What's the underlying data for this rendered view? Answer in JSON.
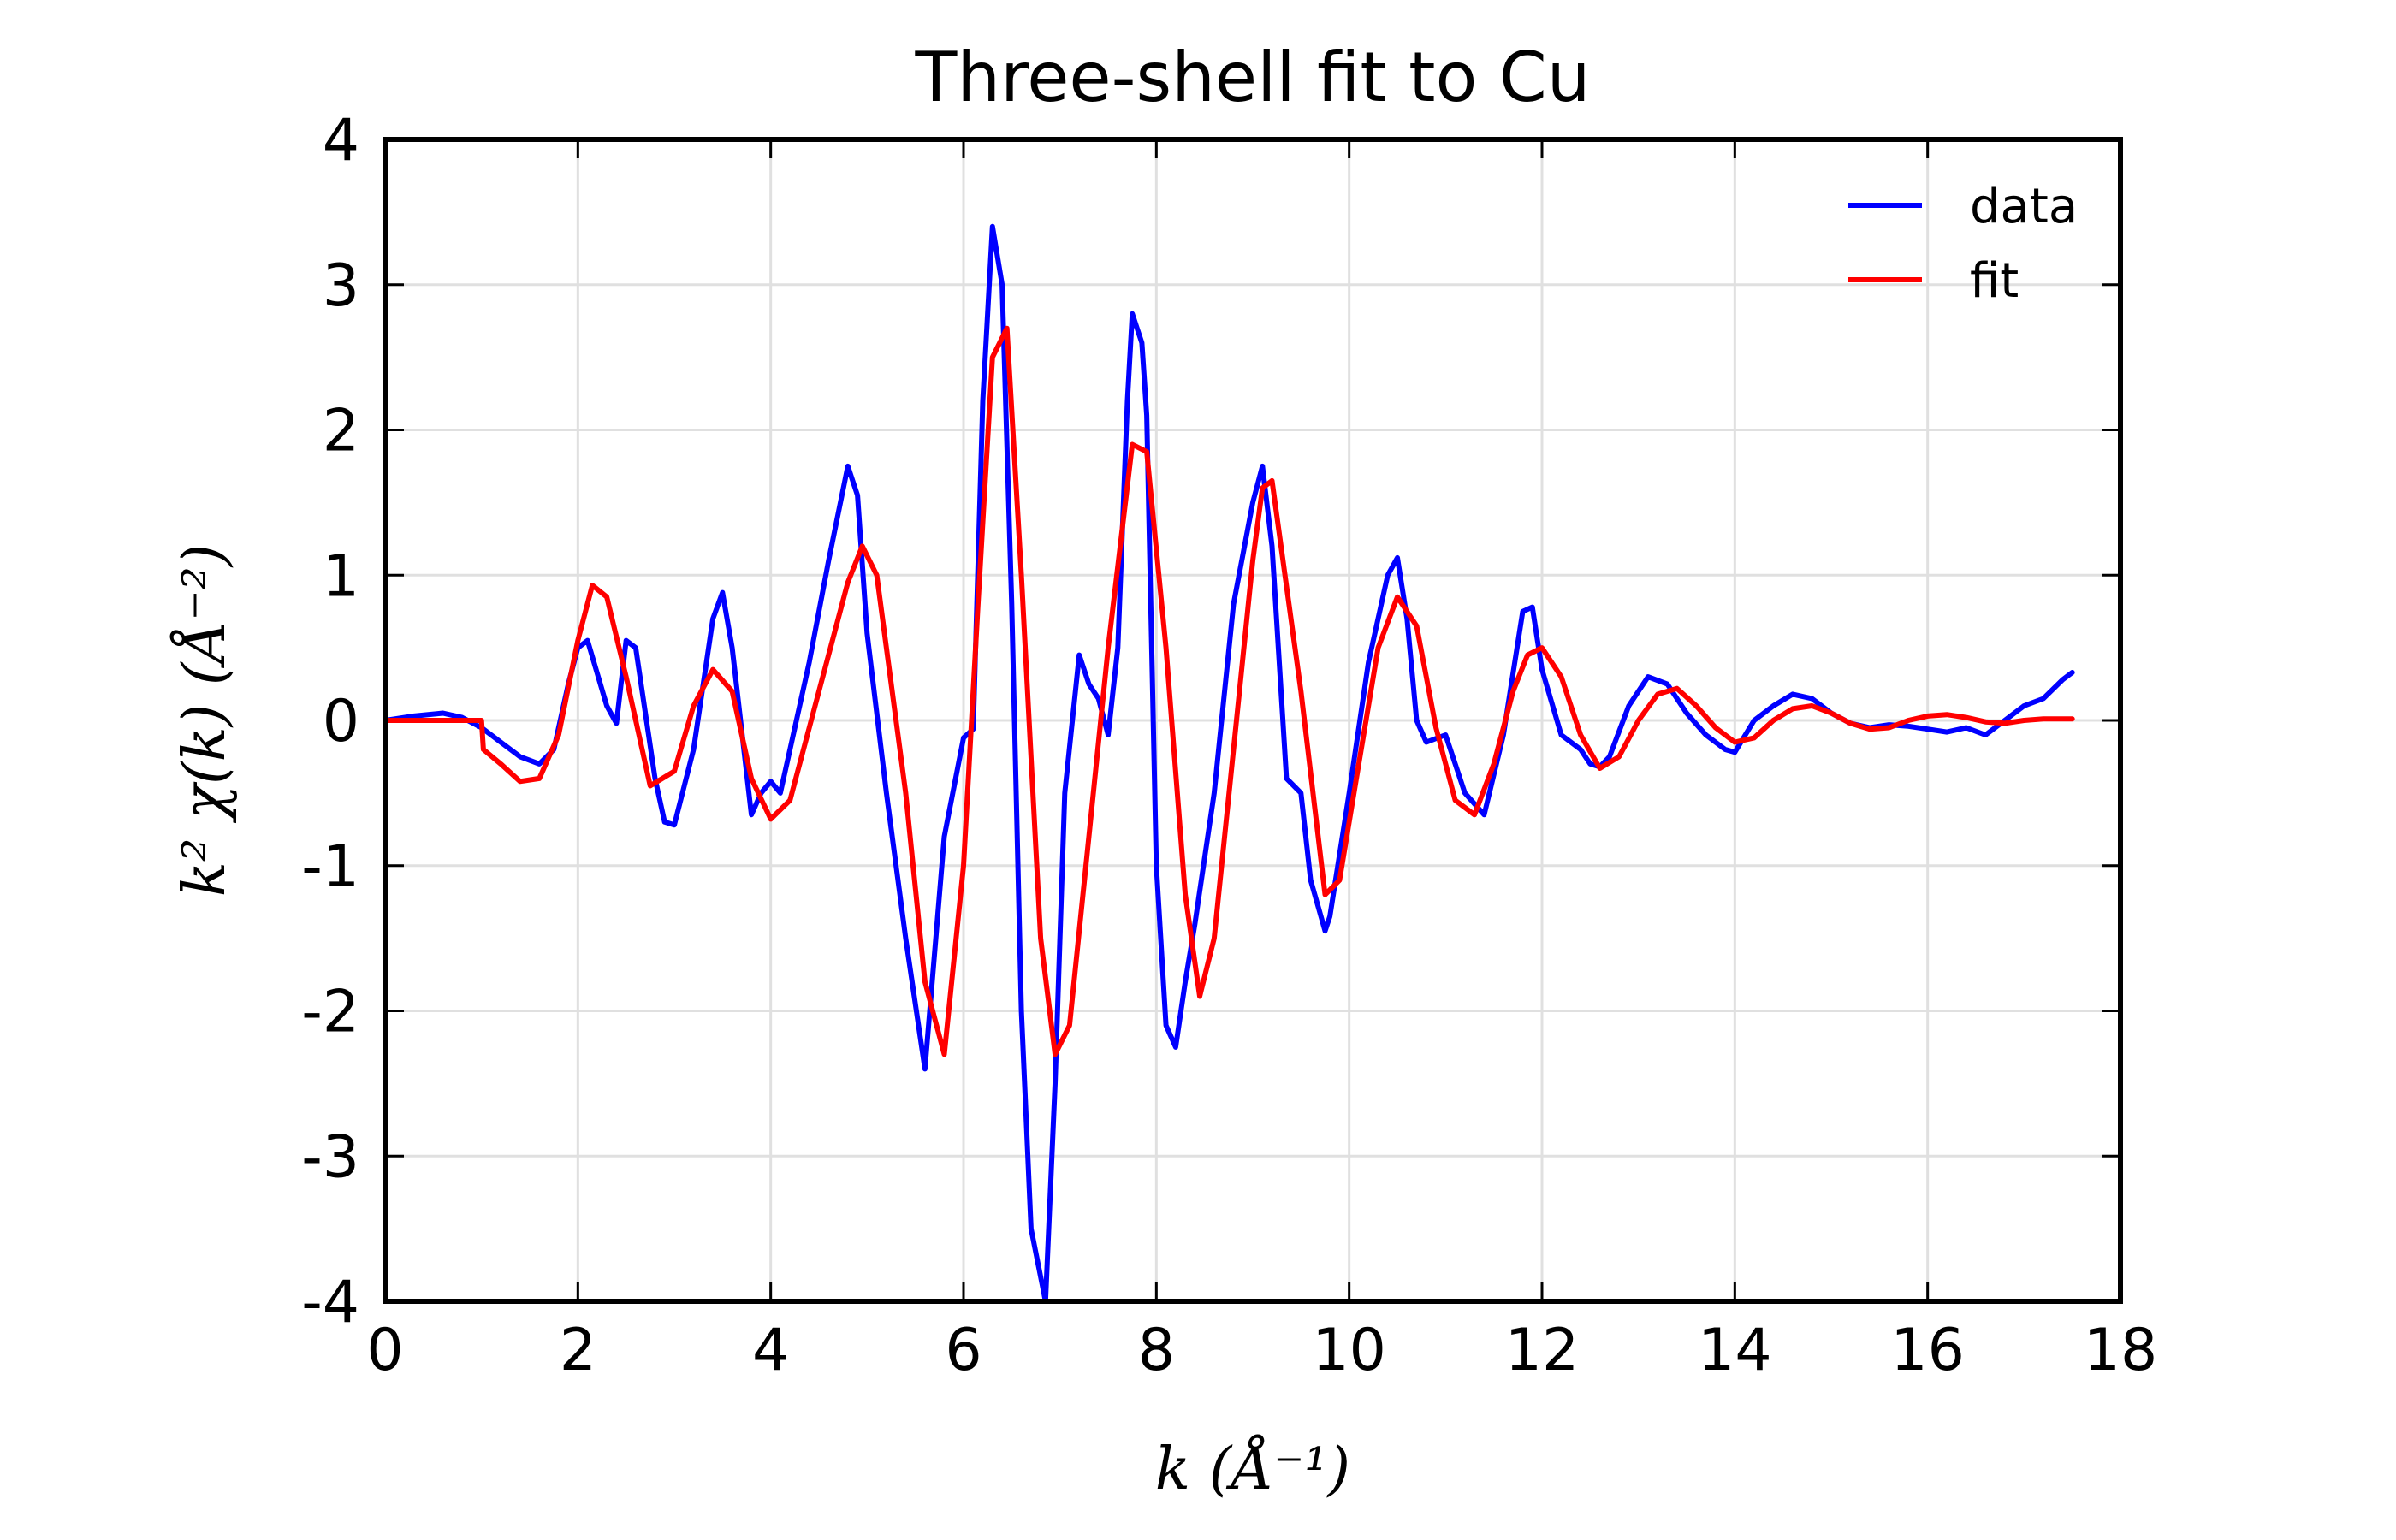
{
  "chart_data": {
    "type": "line",
    "title": "Three-shell fit to Cu",
    "xlabel": "k (Å⁻¹)",
    "ylabel": "k² χ(k) (Å⁻²)",
    "xlim": [
      0,
      18
    ],
    "ylim": [
      -4,
      4
    ],
    "x_ticks": [
      "0",
      "2",
      "4",
      "6",
      "8",
      "10",
      "12",
      "14",
      "16",
      "18"
    ],
    "y_ticks": [
      "4",
      "3",
      "2",
      "1",
      "0",
      "-1",
      "-2",
      "-3",
      "-4"
    ],
    "grid": true,
    "legend_position": "top-right",
    "series": [
      {
        "name": "data",
        "color": "#0000ff",
        "x": [
          0.0,
          0.3,
          0.6,
          0.8,
          1.0,
          1.2,
          1.4,
          1.6,
          1.75,
          1.9,
          2.0,
          2.1,
          2.3,
          2.4,
          2.5,
          2.6,
          2.8,
          2.9,
          3.0,
          3.2,
          3.4,
          3.5,
          3.6,
          3.8,
          3.9,
          4.0,
          4.1,
          4.2,
          4.4,
          4.6,
          4.8,
          4.9,
          5.0,
          5.2,
          5.4,
          5.6,
          5.8,
          6.0,
          6.1,
          6.2,
          6.3,
          6.4,
          6.5,
          6.6,
          6.7,
          6.85,
          6.95,
          7.05,
          7.2,
          7.3,
          7.4,
          7.5,
          7.6,
          7.7,
          7.75,
          7.85,
          7.9,
          8.0,
          8.1,
          8.2,
          8.3,
          8.4,
          8.6,
          8.8,
          9.0,
          9.1,
          9.2,
          9.35,
          9.5,
          9.6,
          9.75,
          9.8,
          10.0,
          10.2,
          10.4,
          10.5,
          10.6,
          10.7,
          10.8,
          11.0,
          11.1,
          11.2,
          11.4,
          11.6,
          11.8,
          11.9,
          12.0,
          12.2,
          12.4,
          12.5,
          12.6,
          12.7,
          12.9,
          13.1,
          13.3,
          13.5,
          13.7,
          13.9,
          14.0,
          14.2,
          14.4,
          14.6,
          14.8,
          15.0,
          15.2,
          15.4,
          15.6,
          15.8,
          16.0,
          16.2,
          16.4,
          16.6,
          16.8,
          17.0,
          17.2,
          17.4,
          17.5
        ],
        "y": [
          0.0,
          0.03,
          0.05,
          0.02,
          -0.05,
          -0.15,
          -0.25,
          -0.3,
          -0.2,
          0.25,
          0.5,
          0.55,
          0.1,
          -0.02,
          0.55,
          0.5,
          -0.4,
          -0.7,
          -0.72,
          -0.2,
          0.7,
          0.88,
          0.5,
          -0.65,
          -0.5,
          -0.42,
          -0.5,
          -0.2,
          0.4,
          1.1,
          1.75,
          1.55,
          0.6,
          -0.5,
          -1.5,
          -2.4,
          -0.8,
          -0.12,
          -0.06,
          2.2,
          3.4,
          3.0,
          0.8,
          -2.0,
          -3.5,
          -4.0,
          -2.5,
          -0.5,
          0.45,
          0.25,
          0.15,
          -0.1,
          0.5,
          2.2,
          2.8,
          2.6,
          2.1,
          -1.0,
          -2.1,
          -2.25,
          -1.8,
          -1.4,
          -0.5,
          0.8,
          1.5,
          1.75,
          1.2,
          -0.4,
          -0.5,
          -1.1,
          -1.45,
          -1.35,
          -0.5,
          0.4,
          1.0,
          1.12,
          0.7,
          0.0,
          -0.15,
          -0.1,
          -0.3,
          -0.5,
          -0.65,
          -0.1,
          0.75,
          0.78,
          0.35,
          -0.1,
          -0.2,
          -0.3,
          -0.32,
          -0.25,
          0.1,
          0.3,
          0.25,
          0.05,
          -0.1,
          -0.2,
          -0.22,
          0.0,
          0.1,
          0.18,
          0.15,
          0.05,
          -0.02,
          -0.05,
          -0.03,
          -0.04,
          -0.06,
          -0.08,
          -0.05,
          -0.1,
          0.0,
          0.1,
          0.15,
          0.28,
          0.33
        ]
      },
      {
        "name": "fit",
        "color": "#ff0000",
        "x": [
          0.0,
          1.0,
          1.02,
          1.2,
          1.4,
          1.6,
          1.8,
          2.0,
          2.15,
          2.3,
          2.5,
          2.75,
          3.0,
          3.2,
          3.4,
          3.6,
          3.8,
          4.0,
          4.2,
          4.5,
          4.8,
          4.95,
          5.1,
          5.4,
          5.6,
          5.8,
          6.0,
          6.15,
          6.3,
          6.45,
          6.6,
          6.8,
          6.95,
          7.1,
          7.3,
          7.5,
          7.75,
          7.9,
          8.1,
          8.3,
          8.45,
          8.6,
          8.8,
          9.0,
          9.1,
          9.2,
          9.5,
          9.75,
          9.9,
          10.1,
          10.3,
          10.5,
          10.7,
          10.9,
          11.1,
          11.3,
          11.5,
          11.7,
          11.85,
          12.0,
          12.2,
          12.4,
          12.6,
          12.8,
          13.0,
          13.2,
          13.4,
          13.6,
          13.8,
          14.0,
          14.2,
          14.4,
          14.6,
          14.8,
          15.0,
          15.2,
          15.4,
          15.6,
          15.8,
          16.0,
          16.2,
          16.4,
          16.6,
          16.8,
          17.0,
          17.2,
          17.5
        ],
        "y": [
          0.0,
          0.0,
          -0.2,
          -0.3,
          -0.42,
          -0.4,
          -0.1,
          0.55,
          0.93,
          0.85,
          0.3,
          -0.45,
          -0.35,
          0.1,
          0.35,
          0.2,
          -0.4,
          -0.68,
          -0.55,
          0.2,
          0.95,
          1.2,
          1.0,
          -0.5,
          -1.8,
          -2.3,
          -1.0,
          0.8,
          2.5,
          2.7,
          1.0,
          -1.5,
          -2.3,
          -2.1,
          -0.8,
          0.5,
          1.9,
          1.85,
          0.5,
          -1.2,
          -1.9,
          -1.5,
          -0.2,
          1.1,
          1.6,
          1.65,
          0.2,
          -1.2,
          -1.1,
          -0.3,
          0.5,
          0.85,
          0.65,
          -0.05,
          -0.55,
          -0.65,
          -0.3,
          0.2,
          0.45,
          0.5,
          0.3,
          -0.1,
          -0.33,
          -0.25,
          0.0,
          0.18,
          0.22,
          0.1,
          -0.05,
          -0.15,
          -0.12,
          0.0,
          0.08,
          0.1,
          0.05,
          -0.02,
          -0.06,
          -0.05,
          0.0,
          0.03,
          0.04,
          0.02,
          -0.01,
          -0.02,
          0.0,
          0.01,
          0.01
        ]
      }
    ]
  }
}
